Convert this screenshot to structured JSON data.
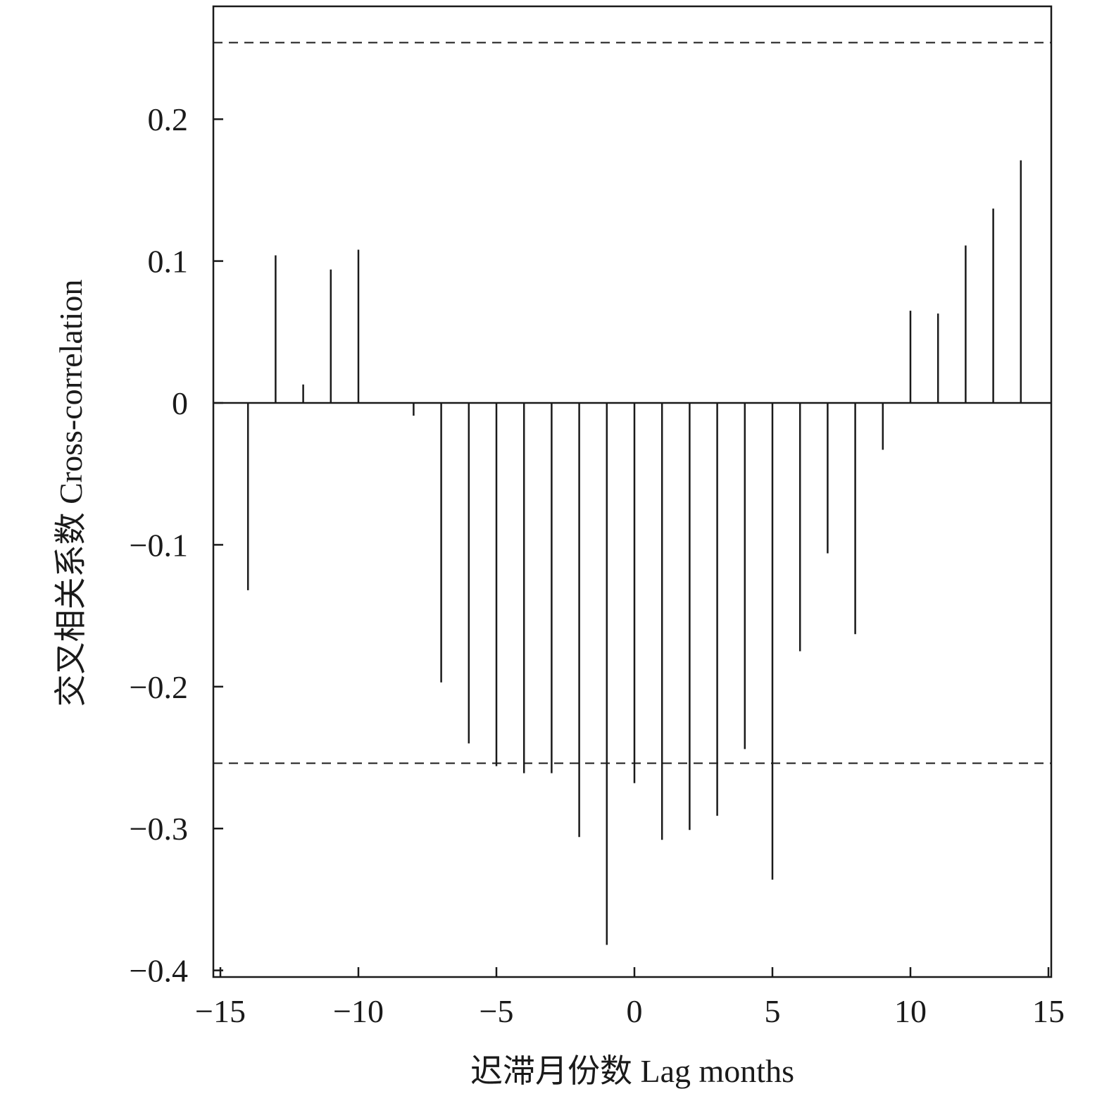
{
  "chart_data": {
    "type": "bar",
    "subtype": "stem",
    "xlabel": "迟滞月份数 Lag months",
    "ylabel": "交叉相关系数 Cross-correlation",
    "xlim": [
      -15,
      15
    ],
    "ylim": [
      -0.4,
      0.28
    ],
    "x_ticks": [
      -15,
      -10,
      -5,
      0,
      5,
      10,
      15
    ],
    "x_tick_labels": [
      "−15",
      "−10",
      "−5",
      "0",
      "5",
      "10",
      "15"
    ],
    "y_ticks": [
      -0.4,
      -0.3,
      -0.2,
      -0.1,
      0,
      0.1,
      0.2
    ],
    "y_tick_labels": [
      "−0.4",
      "−0.3",
      "−0.2",
      "−0.1",
      "0",
      "0.1",
      "0.2"
    ],
    "grid": false,
    "confidence_bounds": [
      0.254,
      -0.254
    ],
    "x": [
      -14,
      -13,
      -12,
      -11,
      -10,
      -9,
      -8,
      -7,
      -6,
      -5,
      -4,
      -3,
      -2,
      -1,
      0,
      1,
      2,
      3,
      4,
      5,
      6,
      7,
      8,
      9,
      10,
      11,
      12,
      13,
      14
    ],
    "values": [
      -0.132,
      0.104,
      0.013,
      0.094,
      0.108,
      0.0,
      -0.009,
      -0.197,
      -0.24,
      -0.256,
      -0.261,
      -0.261,
      -0.306,
      -0.382,
      -0.268,
      -0.308,
      -0.301,
      -0.291,
      -0.244,
      -0.336,
      -0.175,
      -0.106,
      -0.163,
      -0.033,
      0.065,
      0.063,
      0.111,
      0.137,
      0.171
    ],
    "colors": {
      "stem": "#1a1a1a",
      "axis": "#1a1a1a",
      "bounds": "#1a1a1a"
    }
  }
}
